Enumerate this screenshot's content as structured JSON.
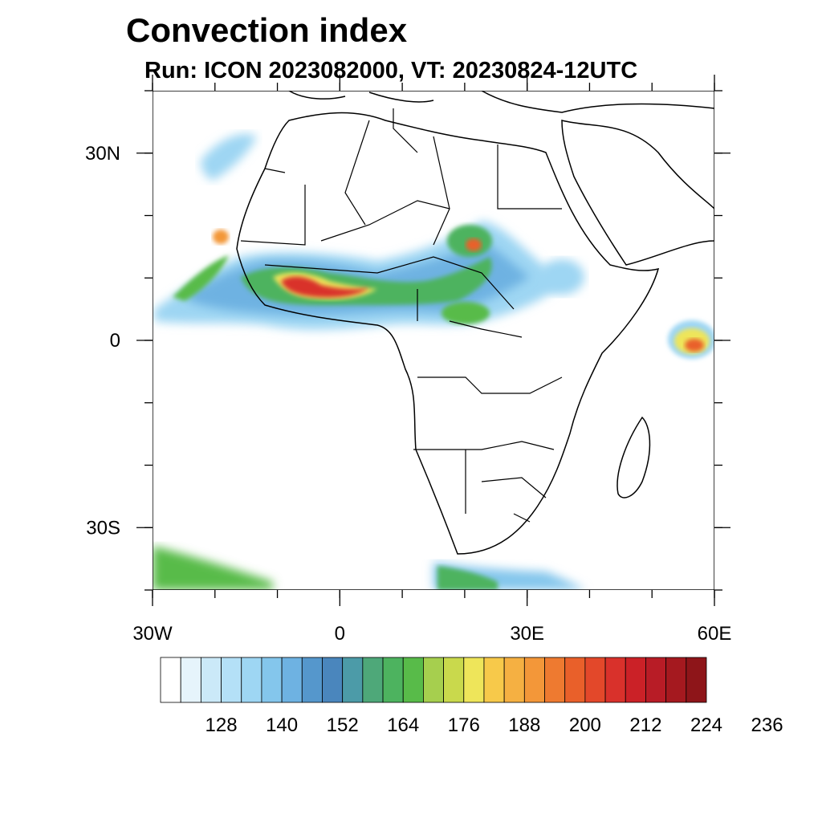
{
  "title": "Convection index",
  "subtitle": "Run: ICON 2023082000,  VT: 20230824-12UTC",
  "map": {
    "region": "Africa",
    "lon_range": [
      -30,
      60
    ],
    "lat_range": [
      -40,
      40
    ],
    "x_ticks": [
      {
        "value": -30,
        "label": "30W"
      },
      {
        "value": 0,
        "label": "0"
      },
      {
        "value": 30,
        "label": "30E"
      },
      {
        "value": 60,
        "label": "60E"
      }
    ],
    "y_ticks": [
      {
        "value": 30,
        "label": "30N"
      },
      {
        "value": 0,
        "label": "0"
      },
      {
        "value": -30,
        "label": "30S"
      }
    ]
  },
  "colorbar": {
    "colors": [
      "#ffffff",
      "#e6f4fb",
      "#cbe9f8",
      "#b4e0f7",
      "#9ed6f3",
      "#84c6ec",
      "#6eb2e2",
      "#5597cc",
      "#4a86bd",
      "#4c9ba8",
      "#4ea879",
      "#4db35f",
      "#58bb49",
      "#a6cf4e",
      "#c9d94c",
      "#eee55a",
      "#f7c94a",
      "#f5b042",
      "#f39739",
      "#ee7a30",
      "#e9602a",
      "#e3482a",
      "#d9312b",
      "#cb2127",
      "#b81c26",
      "#a5191f",
      "#8e1519"
    ],
    "tick_labels": [
      "128",
      "140",
      "152",
      "164",
      "176",
      "188",
      "200",
      "212",
      "224",
      "236"
    ]
  }
}
